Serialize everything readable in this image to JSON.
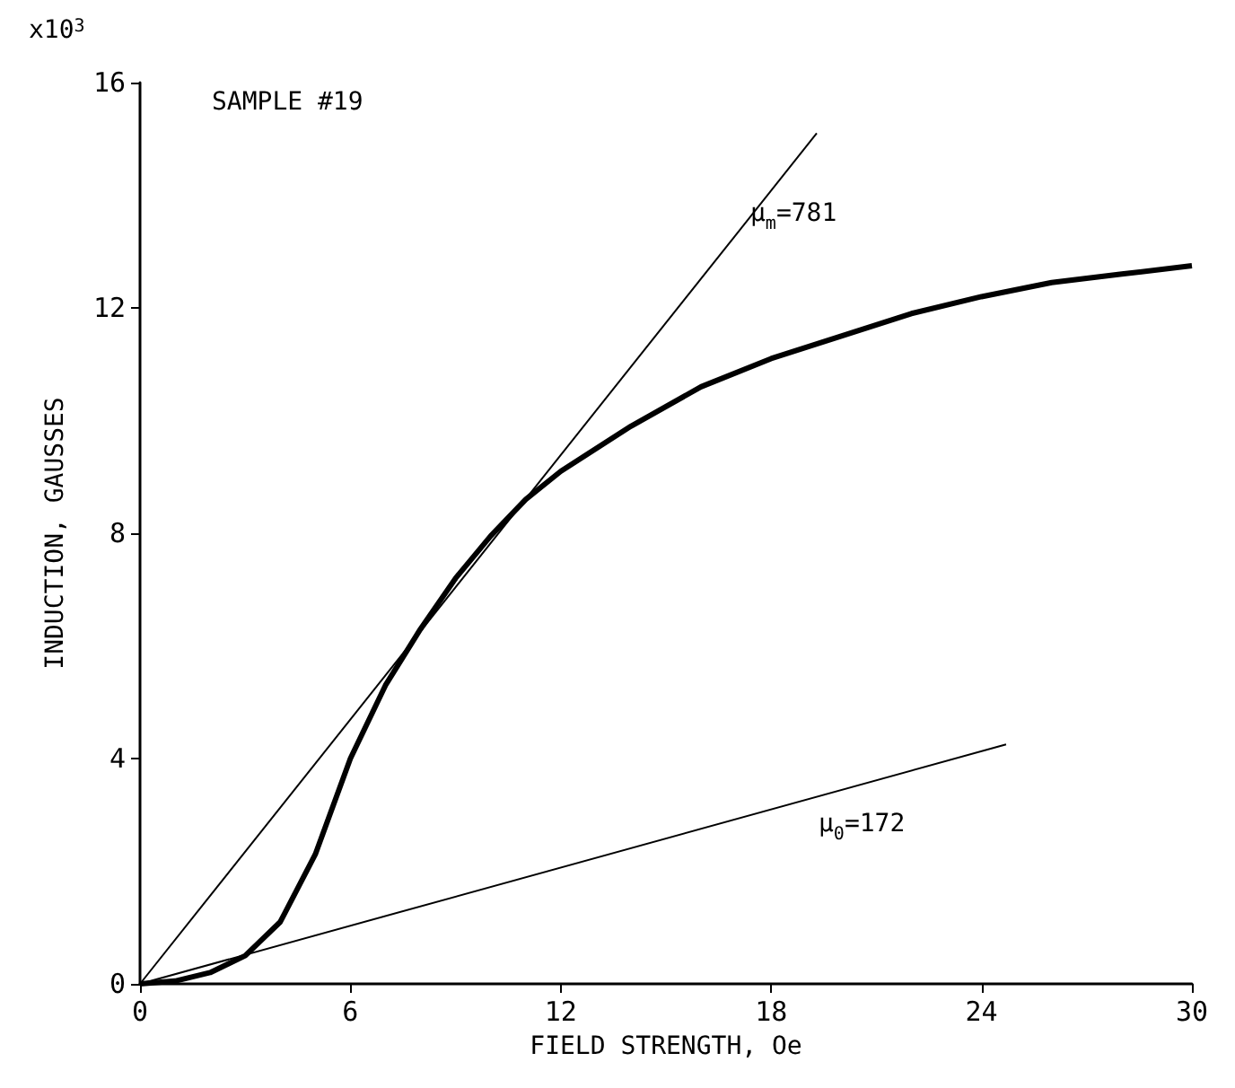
{
  "chart_data": {
    "type": "line",
    "xlabel": "FIELD STRENGTH, Oe",
    "ylabel": "INDUCTION, GAUSSES",
    "xlim": [
      0,
      30
    ],
    "xticks": [
      0,
      6,
      12,
      18,
      24,
      30
    ],
    "ylim": [
      0,
      16
    ],
    "yticks": [
      0,
      4,
      8,
      12,
      16
    ],
    "grid": false,
    "marker": "none",
    "line_style": "solid",
    "series": [
      {
        "color": "#000000",
        "x": [
          0,
          1,
          2,
          3,
          4,
          5,
          6,
          7,
          8,
          9,
          10,
          11,
          12,
          14,
          16,
          18,
          20,
          22,
          24,
          26,
          28,
          30
        ],
        "values": [
          0,
          0.05,
          0.2,
          0.5,
          1.1,
          2.3,
          4.0,
          5.3,
          6.3,
          7.2,
          7.95,
          8.6,
          9.1,
          9.9,
          10.6,
          11.1,
          11.5,
          11.9,
          12.2,
          12.45,
          12.6,
          12.75
        ]
      },
      {
        "color": "#000000",
        "x": [
          0,
          19.3
        ],
        "values": [
          0,
          15.1
        ]
      },
      {
        "color": "#000000",
        "x": [
          0,
          24.7
        ],
        "values": [
          0,
          4.25
        ]
      }
    ],
    "annotations": [
      "x10$^{3}$",
      "SAMPLE #19",
      "μ$_{m}$=781",
      "μ$_{0}$=172"
    ]
  }
}
